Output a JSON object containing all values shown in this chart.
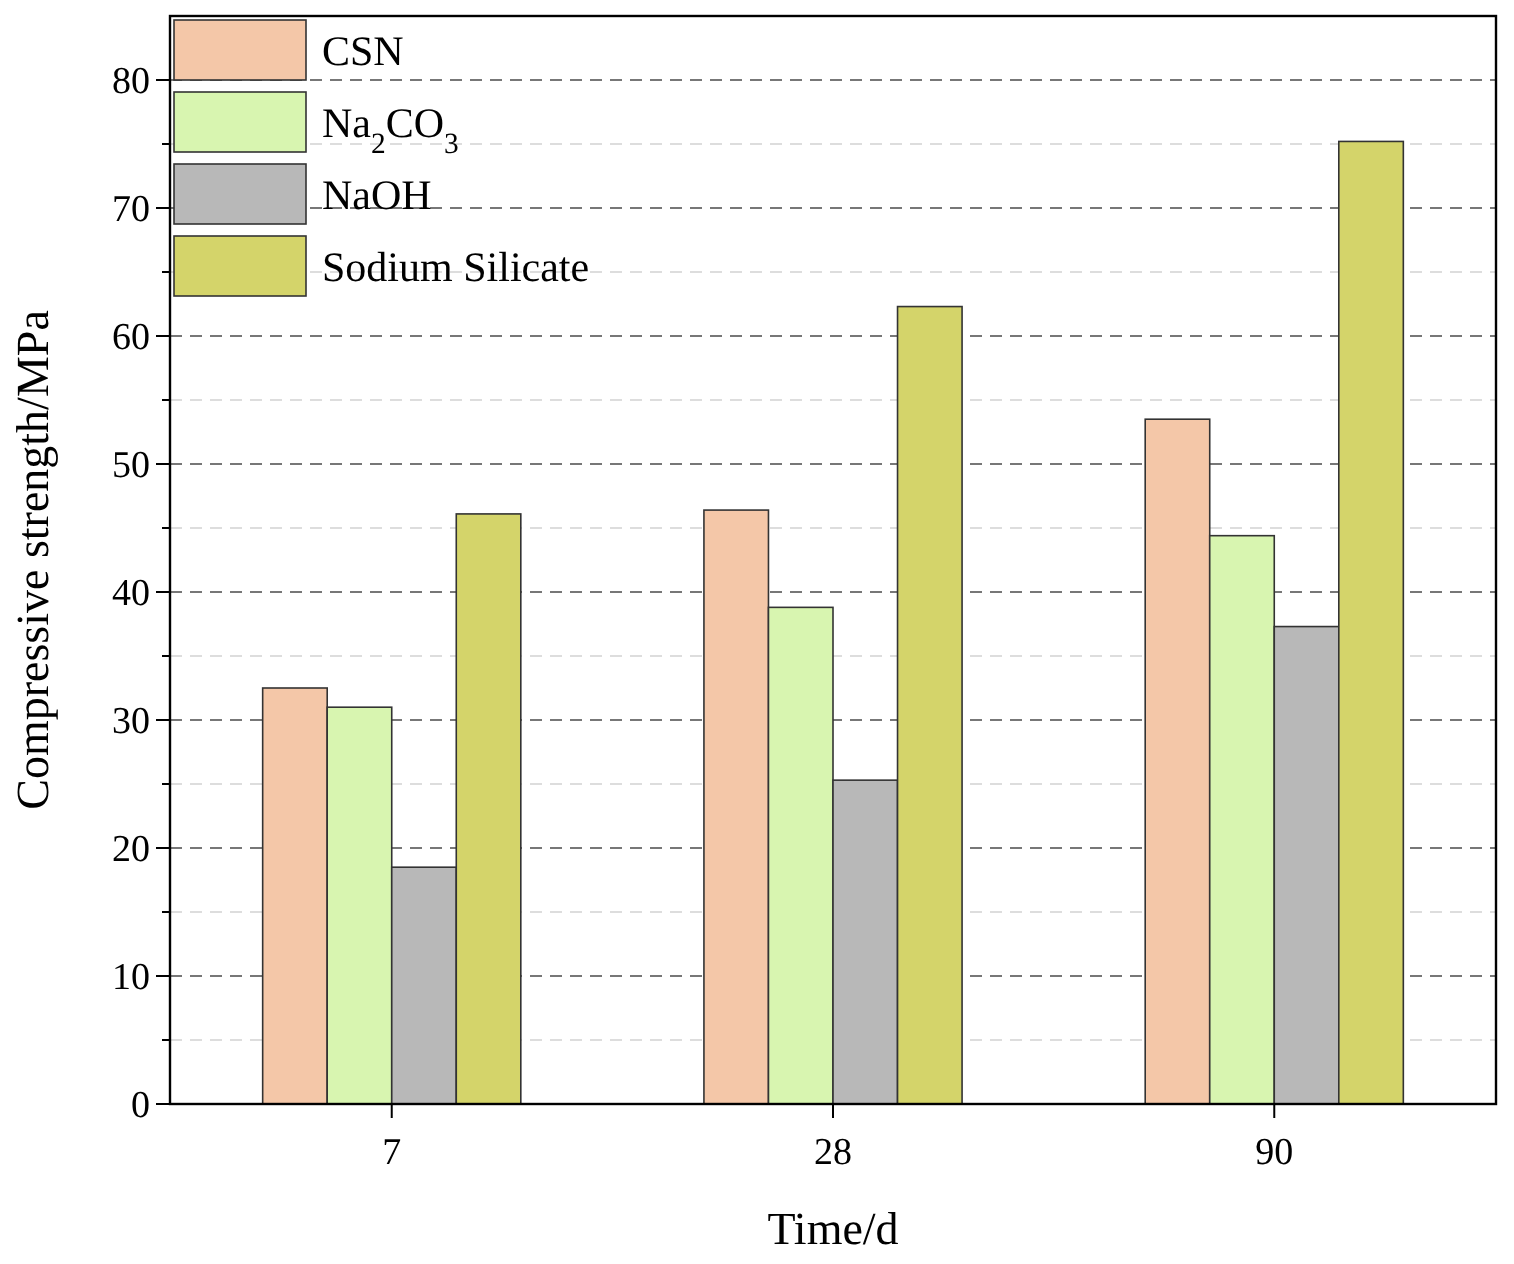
{
  "chart_data": {
    "type": "bar",
    "xlabel": "Time/d",
    "ylabel": "Compressive strength/MPa",
    "categories": [
      "7",
      "28",
      "90"
    ],
    "series": [
      {
        "name": "CSN",
        "color": "#f4c7a8",
        "values": [
          32.5,
          46.4,
          53.5
        ]
      },
      {
        "name": "Na$_{2}$CO$_{3}$",
        "color": "#d8f5b0",
        "values": [
          31.0,
          38.8,
          44.4
        ]
      },
      {
        "name": "NaOH",
        "color": "#b8b8b8",
        "values": [
          18.5,
          25.3,
          37.3
        ]
      },
      {
        "name": "Sodium Silicate",
        "color": "#d4d46a",
        "values": [
          46.1,
          62.3,
          75.2
        ]
      }
    ],
    "ylim": [
      0,
      85
    ],
    "yticks": [
      0,
      {
        "value": 5,
        "label": null
      },
      10,
      {
        "value": 15,
        "label": null
      },
      20,
      {
        "value": 25,
        "label": null
      },
      30,
      {
        "value": 35,
        "label": null
      },
      40,
      {
        "value": 45,
        "label": null
      },
      50,
      {
        "value": 55,
        "label": null
      },
      60,
      {
        "value": 65,
        "label": null
      },
      70,
      {
        "value": 75,
        "label": null
      },
      80
    ],
    "grid": "y",
    "legend": "top left"
  }
}
